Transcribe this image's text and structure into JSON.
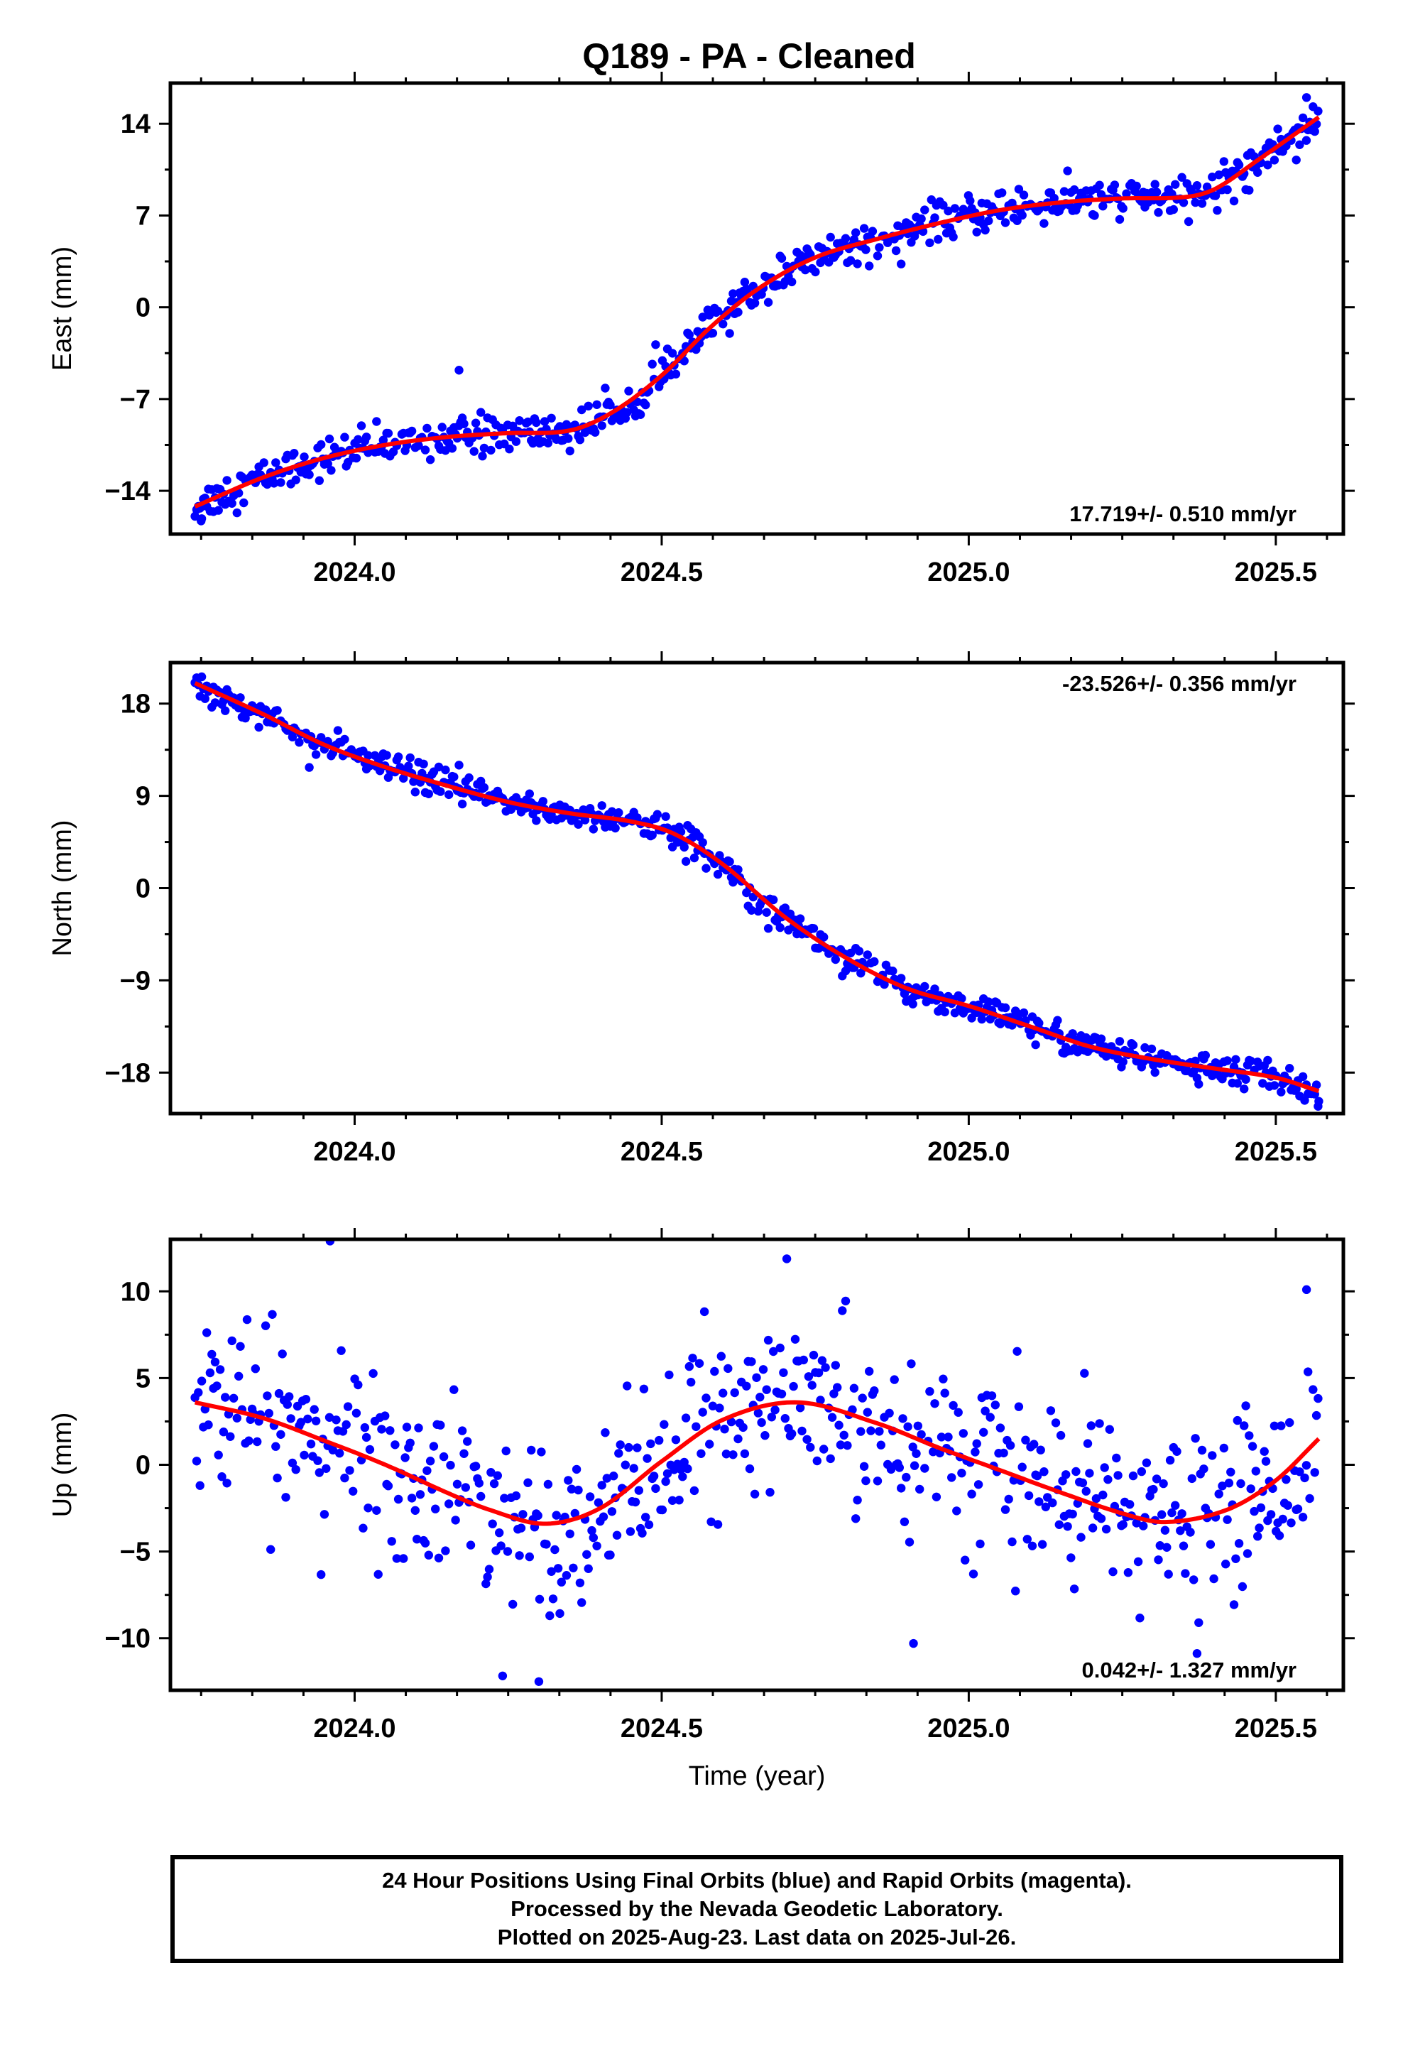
{
  "title": "Q189  - PA - Cleaned",
  "colors": {
    "data": "#0000ff",
    "fit": "#ff0000",
    "frame": "#000000"
  },
  "footer": {
    "line1": "24 Hour Positions Using Final Orbits (blue) and Rapid Orbits (magenta).",
    "line2": "Processed by the Nevada Geodetic Laboratory.",
    "line3": "Plotted on 2025-Aug-23. Last data on 2025-Jul-26."
  },
  "chart_data": [
    {
      "type": "scatter",
      "ylabel": "East (mm)",
      "rate_label": "17.719+/- 0.510 mm/yr",
      "rate_position": "bottom-right",
      "xlim": [
        2023.7,
        2025.61
      ],
      "ylim": [
        -17.3,
        17.1
      ],
      "xticks": [
        2024.0,
        2024.5,
        2025.0,
        2025.5
      ],
      "xtick_labels": [
        "2024.0",
        "2024.5",
        "2025.0",
        "2025.5"
      ],
      "yticks": [
        -14,
        -7,
        0,
        7,
        14
      ],
      "ytick_labels": [
        "−14",
        "−7",
        "0",
        "7",
        "14"
      ],
      "noise_mm": 0.9,
      "trend": {
        "x": [
          2023.74,
          2023.85,
          2023.95,
          2024.05,
          2024.15,
          2024.25,
          2024.35,
          2024.42,
          2024.5,
          2024.58,
          2024.66,
          2024.75,
          2024.85,
          2024.95,
          2025.05,
          2025.15,
          2025.25,
          2025.35,
          2025.4,
          2025.47,
          2025.57
        ],
        "y": [
          -15.2,
          -13.0,
          -11.5,
          -10.5,
          -9.9,
          -9.6,
          -9.4,
          -8.0,
          -5.2,
          -1.5,
          1.5,
          3.8,
          5.2,
          6.4,
          7.4,
          8.0,
          8.3,
          8.4,
          9.0,
          11.2,
          14.5
        ]
      },
      "outliers": [
        {
          "x": 2024.17,
          "y": -4.8
        },
        {
          "x": 2023.75,
          "y": -16.3
        },
        {
          "x": 2025.55,
          "y": 16.0
        }
      ]
    },
    {
      "type": "scatter",
      "ylabel": "North (mm)",
      "rate_label": "-23.526+/- 0.356 mm/yr",
      "rate_position": "top-right",
      "xlim": [
        2023.7,
        2025.61
      ],
      "ylim": [
        -22.0,
        22.0
      ],
      "xticks": [
        2024.0,
        2024.5,
        2025.0,
        2025.5
      ],
      "xtick_labels": [
        "2024.0",
        "2024.5",
        "2025.0",
        "2025.5"
      ],
      "yticks": [
        -18,
        -9,
        0,
        9,
        18
      ],
      "ytick_labels": [
        "−18",
        "−9",
        "0",
        "9",
        "18"
      ],
      "noise_mm": 0.9,
      "trend": {
        "x": [
          2023.74,
          2023.85,
          2023.95,
          2024.05,
          2024.15,
          2024.25,
          2024.35,
          2024.45,
          2024.52,
          2024.6,
          2024.7,
          2024.8,
          2024.9,
          2025.0,
          2025.1,
          2025.2,
          2025.3,
          2025.4,
          2025.5,
          2025.57
        ],
        "y": [
          20.0,
          17.0,
          14.0,
          11.8,
          10.0,
          8.4,
          7.3,
          6.5,
          5.3,
          2.3,
          -2.8,
          -6.8,
          -9.8,
          -11.5,
          -13.5,
          -15.5,
          -16.7,
          -17.6,
          -18.5,
          -19.8
        ]
      },
      "outliers": [
        {
          "x": 2024.17,
          "y": 12.0
        },
        {
          "x": 2025.57,
          "y": -20.8
        }
      ]
    },
    {
      "type": "scatter",
      "ylabel": "Up (mm)",
      "xlabel": "Time (year)",
      "rate_label": "0.042+/- 1.327 mm/yr",
      "rate_position": "bottom-right",
      "xlim": [
        2023.7,
        2025.61
      ],
      "ylim": [
        -13.0,
        13.0
      ],
      "xticks": [
        2024.0,
        2024.5,
        2025.0,
        2025.5
      ],
      "xtick_labels": [
        "2024.0",
        "2024.5",
        "2025.0",
        "2025.5"
      ],
      "yticks": [
        -10,
        -5,
        0,
        5,
        10
      ],
      "ytick_labels": [
        "−10",
        "−5",
        "0",
        "5",
        "10"
      ],
      "noise_mm": 3.1,
      "trend": {
        "x": [
          2023.74,
          2023.85,
          2023.95,
          2024.05,
          2024.15,
          2024.22,
          2024.31,
          2024.4,
          2024.5,
          2024.6,
          2024.72,
          2024.85,
          2024.95,
          2025.05,
          2025.15,
          2025.25,
          2025.32,
          2025.42,
          2025.5,
          2025.57
        ],
        "y": [
          3.6,
          2.7,
          1.4,
          0.0,
          -1.6,
          -2.6,
          -3.4,
          -2.5,
          0.2,
          2.6,
          3.6,
          2.4,
          1.0,
          -0.3,
          -1.6,
          -2.8,
          -3.3,
          -2.6,
          -0.9,
          1.5
        ]
      },
      "outliers": [
        {
          "x": 2023.96,
          "y": 12.9
        },
        {
          "x": 2024.3,
          "y": -12.5
        },
        {
          "x": 2025.55,
          "y": 10.1
        },
        {
          "x": 2024.91,
          "y": -10.3
        }
      ]
    }
  ]
}
